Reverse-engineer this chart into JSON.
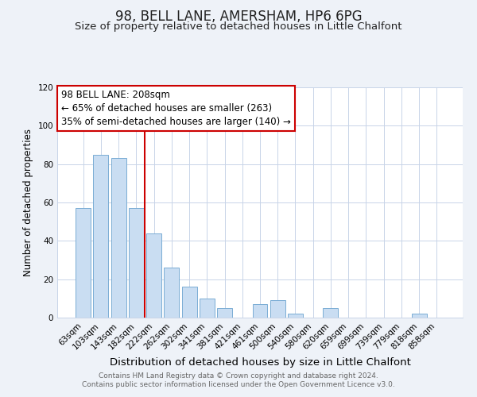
{
  "title": "98, BELL LANE, AMERSHAM, HP6 6PG",
  "subtitle": "Size of property relative to detached houses in Little Chalfont",
  "xlabel": "Distribution of detached houses by size in Little Chalfont",
  "ylabel": "Number of detached properties",
  "categories": [
    "63sqm",
    "103sqm",
    "143sqm",
    "182sqm",
    "222sqm",
    "262sqm",
    "302sqm",
    "341sqm",
    "381sqm",
    "421sqm",
    "461sqm",
    "500sqm",
    "540sqm",
    "580sqm",
    "620sqm",
    "659sqm",
    "699sqm",
    "739sqm",
    "779sqm",
    "818sqm",
    "858sqm"
  ],
  "values": [
    57,
    85,
    83,
    57,
    44,
    26,
    16,
    10,
    5,
    0,
    7,
    9,
    2,
    0,
    5,
    0,
    0,
    0,
    0,
    2,
    0
  ],
  "bar_color": "#c9ddf2",
  "bar_edge_color": "#7aadd4",
  "vline_color": "#cc0000",
  "annotation_line1": "98 BELL LANE: 208sqm",
  "annotation_line2": "← 65% of detached houses are smaller (263)",
  "annotation_line3": "35% of semi-detached houses are larger (140) →",
  "annotation_box_color": "#cc0000",
  "annotation_box_bg": "#ffffff",
  "ylim": [
    0,
    120
  ],
  "yticks": [
    0,
    20,
    40,
    60,
    80,
    100,
    120
  ],
  "footer1": "Contains HM Land Registry data © Crown copyright and database right 2024.",
  "footer2": "Contains public sector information licensed under the Open Government Licence v3.0.",
  "bg_color": "#eef2f8",
  "plot_bg_color": "#ffffff",
  "grid_color": "#c8d4e8",
  "title_fontsize": 12,
  "subtitle_fontsize": 9.5,
  "xlabel_fontsize": 9.5,
  "ylabel_fontsize": 8.5,
  "annotation_fontsize": 8.5,
  "tick_fontsize": 7.5,
  "footer_fontsize": 6.5
}
